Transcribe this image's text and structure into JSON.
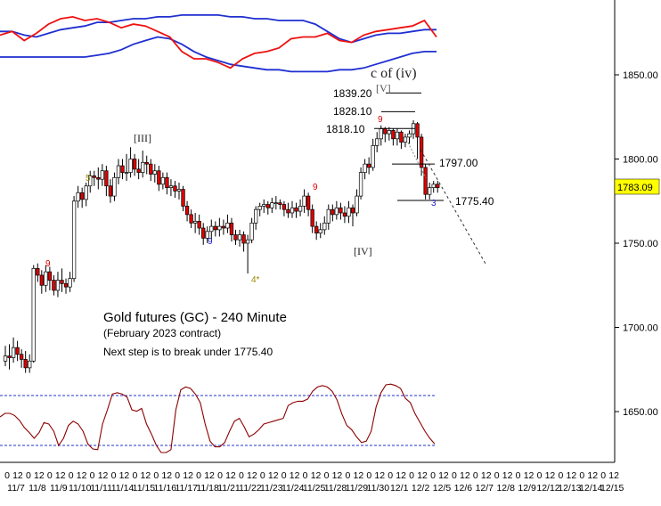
{
  "chart_data": {
    "type": "candlestick",
    "title": "Gold futures (GC) - 240 Minute",
    "subtitle": "(February 2023 contract)",
    "note": "Next step is to break under 1775.40",
    "price_axis": {
      "ticks": [
        "1850.00",
        "1800.00",
        "1750.00",
        "1700.00",
        "1650.00"
      ],
      "tick_values": [
        1850,
        1800,
        1750,
        1700,
        1650
      ],
      "last_price": "1783.09",
      "last_price_value": 1783.09,
      "ylim": [
        1617,
        1890
      ]
    },
    "time_axis": {
      "hour_labels": [
        "0",
        "12",
        "0",
        "12",
        "0",
        "12",
        "0",
        "12",
        "0",
        "12",
        "0",
        "12",
        "0",
        "12",
        "0",
        "12",
        "0",
        "12",
        "0",
        "12",
        "0",
        "12",
        "0",
        "12",
        "0",
        "12",
        "0",
        "12",
        "0",
        "12",
        "0",
        "12",
        "0",
        "12",
        "0",
        "12",
        "0",
        "12",
        "0",
        "12",
        "0",
        "12",
        "0",
        "12",
        "0",
        "12",
        "0",
        "12",
        "0",
        "12",
        "0",
        "12",
        "0",
        "12",
        "0",
        "12",
        "0",
        "12"
      ],
      "date_labels": [
        "11/7",
        "11/8",
        "11/9",
        "11/10",
        "11/11",
        "11/14",
        "11/15",
        "11/16",
        "11/17",
        "11/18",
        "11/21",
        "11/22",
        "11/23",
        "11/24",
        "11/25",
        "11/28",
        "11/29",
        "11/30",
        "12/1",
        "12/2",
        "12/5",
        "12/6",
        "12/7",
        "12/8",
        "12/9",
        "12/12",
        "12/13",
        "12/14",
        "12/15"
      ]
    },
    "candles": [
      [
        1680,
        1683,
        1677,
        1689
      ],
      [
        1683,
        1682,
        1675,
        1690
      ],
      [
        1682,
        1688,
        1679,
        1694
      ],
      [
        1688,
        1684,
        1680,
        1692
      ],
      [
        1684,
        1681,
        1676,
        1687
      ],
      [
        1681,
        1676,
        1673,
        1686
      ],
      [
        1676,
        1680,
        1673,
        1684
      ],
      [
        1680,
        1735,
        1679,
        1737
      ],
      [
        1735,
        1731,
        1727,
        1738
      ],
      [
        1731,
        1725,
        1720,
        1734
      ],
      [
        1725,
        1733,
        1721,
        1737
      ],
      [
        1733,
        1728,
        1722,
        1736
      ],
      [
        1728,
        1722,
        1719,
        1731
      ],
      [
        1722,
        1728,
        1718,
        1733
      ],
      [
        1728,
        1726,
        1721,
        1735
      ],
      [
        1726,
        1724,
        1720,
        1729
      ],
      [
        1724,
        1729,
        1721,
        1733
      ],
      [
        1729,
        1775,
        1727,
        1778
      ],
      [
        1775,
        1780,
        1771,
        1784
      ],
      [
        1780,
        1776,
        1771,
        1783
      ],
      [
        1776,
        1784,
        1772,
        1786
      ],
      [
        1784,
        1790,
        1780,
        1793
      ],
      [
        1790,
        1789,
        1784,
        1793
      ],
      [
        1789,
        1788,
        1782,
        1795
      ],
      [
        1788,
        1793,
        1784,
        1797
      ],
      [
        1793,
        1784,
        1778,
        1796
      ],
      [
        1784,
        1778,
        1774,
        1788
      ],
      [
        1778,
        1789,
        1775,
        1792
      ],
      [
        1789,
        1796,
        1785,
        1800
      ],
      [
        1796,
        1792,
        1788,
        1800
      ],
      [
        1792,
        1792,
        1787,
        1803
      ],
      [
        1792,
        1800,
        1789,
        1807
      ],
      [
        1800,
        1794,
        1790,
        1803
      ],
      [
        1794,
        1792,
        1788,
        1800
      ],
      [
        1792,
        1798,
        1789,
        1805
      ],
      [
        1798,
        1797,
        1791,
        1802
      ],
      [
        1797,
        1791,
        1787,
        1800
      ],
      [
        1791,
        1793,
        1786,
        1797
      ],
      [
        1793,
        1785,
        1781,
        1796
      ],
      [
        1785,
        1789,
        1782,
        1792
      ],
      [
        1789,
        1783,
        1779,
        1792
      ],
      [
        1783,
        1784,
        1778,
        1788
      ],
      [
        1784,
        1781,
        1777,
        1787
      ],
      [
        1781,
        1782,
        1776,
        1786
      ],
      [
        1782,
        1772,
        1769,
        1784
      ],
      [
        1772,
        1767,
        1763,
        1775
      ],
      [
        1767,
        1762,
        1759,
        1770
      ],
      [
        1762,
        1763,
        1756,
        1768
      ],
      [
        1763,
        1759,
        1755,
        1767
      ],
      [
        1759,
        1753,
        1749,
        1762
      ],
      [
        1753,
        1757,
        1750,
        1760
      ],
      [
        1757,
        1760,
        1752,
        1764
      ],
      [
        1760,
        1758,
        1754,
        1763
      ],
      [
        1758,
        1760,
        1754,
        1765
      ],
      [
        1760,
        1759,
        1755,
        1764
      ],
      [
        1759,
        1762,
        1756,
        1767
      ],
      [
        1762,
        1755,
        1751,
        1765
      ],
      [
        1755,
        1752,
        1749,
        1758
      ],
      [
        1752,
        1755,
        1748,
        1758
      ],
      [
        1755,
        1750,
        1745,
        1757
      ],
      [
        1750,
        1752,
        1732,
        1755
      ],
      [
        1752,
        1762,
        1750,
        1765
      ],
      [
        1762,
        1770,
        1758,
        1772
      ],
      [
        1770,
        1772,
        1766,
        1774
      ],
      [
        1772,
        1773,
        1768,
        1776
      ],
      [
        1773,
        1771,
        1767,
        1775
      ],
      [
        1771,
        1774,
        1768,
        1777
      ],
      [
        1774,
        1774,
        1770,
        1778
      ],
      [
        1774,
        1773,
        1770,
        1776
      ],
      [
        1773,
        1770,
        1766,
        1775
      ],
      [
        1770,
        1768,
        1765,
        1774
      ],
      [
        1768,
        1771,
        1765,
        1775
      ],
      [
        1771,
        1769,
        1765,
        1774
      ],
      [
        1769,
        1772,
        1766,
        1776
      ],
      [
        1772,
        1778,
        1768,
        1782
      ],
      [
        1778,
        1770,
        1766,
        1780
      ],
      [
        1770,
        1760,
        1756,
        1773
      ],
      [
        1760,
        1756,
        1752,
        1763
      ],
      [
        1756,
        1758,
        1753,
        1762
      ],
      [
        1758,
        1762,
        1755,
        1766
      ],
      [
        1762,
        1770,
        1758,
        1773
      ],
      [
        1770,
        1767,
        1763,
        1773
      ],
      [
        1767,
        1771,
        1764,
        1775
      ],
      [
        1771,
        1768,
        1764,
        1774
      ],
      [
        1768,
        1766,
        1762,
        1772
      ],
      [
        1766,
        1771,
        1762,
        1775
      ],
      [
        1771,
        1768,
        1760,
        1773
      ],
      [
        1768,
        1778,
        1766,
        1782
      ],
      [
        1778,
        1792,
        1776,
        1795
      ],
      [
        1792,
        1797,
        1788,
        1800
      ],
      [
        1797,
        1795,
        1791,
        1801
      ],
      [
        1795,
        1808,
        1793,
        1812
      ],
      [
        1808,
        1812,
        1804,
        1816
      ],
      [
        1812,
        1818,
        1808,
        1820
      ],
      [
        1818,
        1815,
        1810,
        1819
      ],
      [
        1815,
        1817,
        1811,
        1819
      ],
      [
        1817,
        1812,
        1808,
        1818
      ],
      [
        1812,
        1816,
        1808,
        1818
      ],
      [
        1816,
        1810,
        1806,
        1817
      ],
      [
        1810,
        1813,
        1807,
        1815
      ],
      [
        1813,
        1815,
        1809,
        1817
      ],
      [
        1815,
        1821,
        1812,
        1823
      ],
      [
        1821,
        1813,
        1800,
        1822
      ],
      [
        1813,
        1795,
        1790,
        1815
      ],
      [
        1795,
        1779,
        1776,
        1797
      ],
      [
        1779,
        1783,
        1776,
        1786
      ],
      [
        1783,
        1785,
        1780,
        1787
      ],
      [
        1785,
        1783,
        1780,
        1787
      ]
    ],
    "levels": [
      {
        "label": "1839.20",
        "value": 1839.2
      },
      {
        "label": "1828.10",
        "value": 1828.1
      },
      {
        "label": "1818.10",
        "value": 1818.1
      },
      {
        "label": "1797.00",
        "value": 1797.0
      },
      {
        "label": "1775.40",
        "value": 1775.4
      }
    ],
    "wave_labels": [
      {
        "text": "c of (iv)",
        "color": "#222222"
      },
      {
        "text": "[V]",
        "color": "#555555"
      },
      {
        "text": "[III]",
        "color": "#222222"
      },
      {
        "text": "[IV]",
        "color": "#222222"
      },
      {
        "text": "5",
        "color": "#9a8a00"
      },
      {
        "text": "4*",
        "color": "#9a8a00"
      },
      {
        "text": "9",
        "color": "#dd0000"
      },
      {
        "text": "9",
        "color": "#2222cc"
      },
      {
        "text": "3",
        "color": "#2222cc"
      }
    ],
    "upper_indicator": {
      "blue_upper": [
        1878,
        1878,
        1876,
        1875,
        1877,
        1879,
        1880,
        1881,
        1883,
        1883,
        1884,
        1885,
        1885,
        1886,
        1886,
        1887,
        1887,
        1887,
        1887,
        1886,
        1886,
        1885,
        1885,
        1884,
        1884,
        1884,
        1882,
        1878,
        1874,
        1872,
        1874,
        1876,
        1877,
        1877,
        1878,
        1879,
        1879
      ],
      "blue_lower": [
        1864,
        1864,
        1864,
        1864,
        1864,
        1864,
        1864,
        1864,
        1865,
        1866,
        1868,
        1871,
        1873,
        1875,
        1874,
        1871,
        1867,
        1864,
        1862,
        1860,
        1859,
        1858,
        1857,
        1857,
        1856,
        1856,
        1856,
        1856,
        1857,
        1857,
        1858,
        1860,
        1862,
        1864,
        1866,
        1867,
        1867
      ],
      "red": [
        1876,
        1878,
        1873,
        1877,
        1882,
        1885,
        1886,
        1884,
        1885,
        1883,
        1880,
        1882,
        1881,
        1878,
        1875,
        1867,
        1863,
        1863,
        1861,
        1858,
        1863,
        1866,
        1867,
        1869,
        1874,
        1875,
        1875,
        1877,
        1873,
        1872,
        1876,
        1878,
        1879,
        1880,
        1881,
        1884,
        1875
      ]
    },
    "lower_indicator": {
      "values": [
        50,
        55,
        55,
        52,
        45,
        35,
        28,
        20,
        28,
        42,
        40,
        30,
        10,
        20,
        38,
        44,
        40,
        30,
        12,
        5,
        4,
        40,
        60,
        82,
        84,
        82,
        78,
        60,
        58,
        62,
        40,
        26,
        10,
        0,
        0,
        4,
        60,
        88,
        92,
        90,
        82,
        70,
        40,
        16,
        8,
        8,
        14,
        30,
        44,
        48,
        36,
        22,
        26,
        32,
        40,
        42,
        44,
        46,
        48,
        66,
        70,
        72,
        72,
        75,
        86,
        92,
        94,
        92,
        86,
        74,
        54,
        38,
        32,
        22,
        14,
        16,
        30,
        64,
        84,
        95,
        96,
        94,
        90,
        76,
        70,
        54,
        42,
        30,
        20,
        12
      ],
      "levels": [
        80,
        20
      ]
    }
  }
}
